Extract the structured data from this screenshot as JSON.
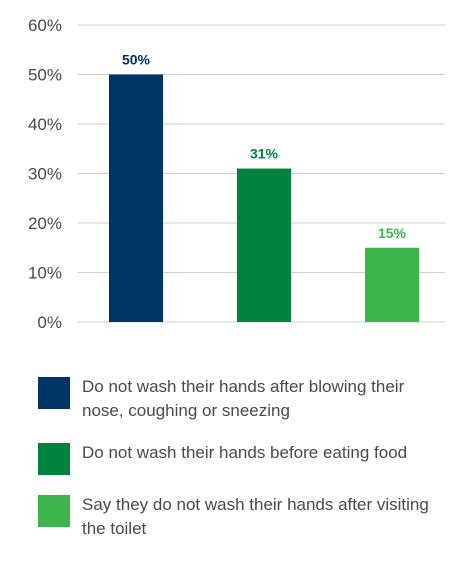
{
  "chart_data": {
    "type": "bar",
    "categories": [
      "Do not wash their hands after blowing their nose, coughing or sneezing",
      "Do not wash their hands before eating food",
      "Say they do not wash their hands after visiting the toilet"
    ],
    "values": [
      50,
      31,
      15
    ],
    "data_labels": [
      "50%",
      "31%",
      "15%"
    ],
    "colors": [
      "#003366",
      "#00843d",
      "#3bb54a"
    ],
    "label_colors": [
      "#003366",
      "#00843d",
      "#3bb54a"
    ],
    "ylim": [
      0,
      60
    ],
    "yticks": [
      0,
      10,
      20,
      30,
      40,
      50,
      60
    ],
    "ytick_labels": [
      "0%",
      "10%",
      "20%",
      "30%",
      "40%",
      "50%",
      "60%"
    ],
    "grid": true,
    "legend_position": "bottom",
    "title": "",
    "xlabel": "",
    "ylabel": ""
  },
  "legend": [
    {
      "label": "Do not wash their hands after blowing their nose, coughing or sneezing",
      "color": "#003366"
    },
    {
      "label": "Do not wash their hands before eating food",
      "color": "#00843d"
    },
    {
      "label": "Say they do not wash their hands after visiting the toilet",
      "color": "#3bb54a"
    }
  ]
}
